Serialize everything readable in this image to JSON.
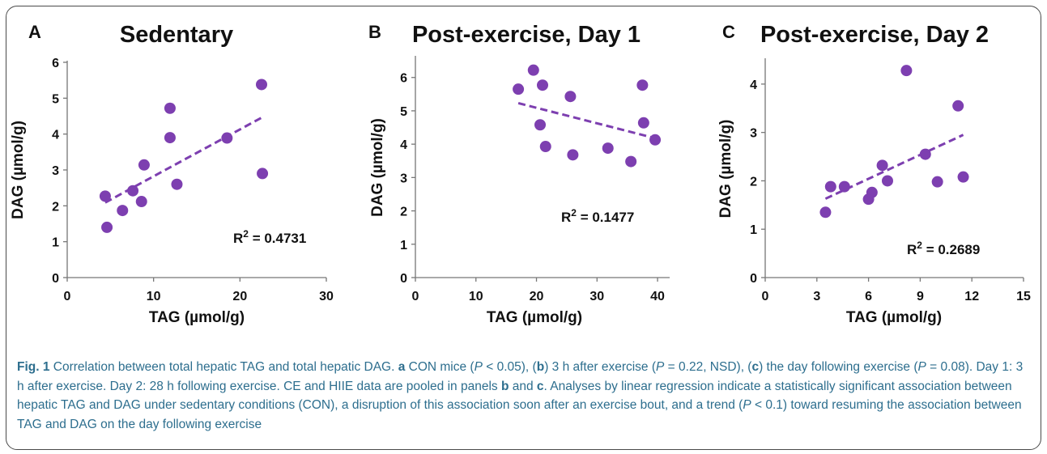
{
  "chart_data": [
    {
      "type": "scatter",
      "panel_letter": "A",
      "title": "Sedentary",
      "xlabel": "TAG (µmol/g)",
      "ylabel": "DAG (µmol/g)",
      "xlim": [
        0,
        30
      ],
      "ylim": [
        0,
        6
      ],
      "xticks": [
        "0",
        "10",
        "20",
        "30"
      ],
      "yticks": [
        "0",
        "1",
        "2",
        "3",
        "4",
        "5",
        "6"
      ],
      "points": [
        {
          "x": 4.4,
          "y": 2.27
        },
        {
          "x": 4.6,
          "y": 1.4
        },
        {
          "x": 6.4,
          "y": 1.87
        },
        {
          "x": 7.6,
          "y": 2.42
        },
        {
          "x": 8.6,
          "y": 2.12
        },
        {
          "x": 8.9,
          "y": 3.14
        },
        {
          "x": 11.9,
          "y": 4.72
        },
        {
          "x": 11.9,
          "y": 3.9
        },
        {
          "x": 12.7,
          "y": 2.6
        },
        {
          "x": 18.5,
          "y": 3.89
        },
        {
          "x": 22.5,
          "y": 5.38
        },
        {
          "x": 22.6,
          "y": 2.9
        }
      ],
      "trendline": {
        "x": [
          4.4,
          22.6
        ],
        "y": [
          2.09,
          4.47
        ],
        "style": "dashed"
      },
      "annotation": {
        "r2_label": "R",
        "r2_sup": "2",
        "r2_value": " = 0.4731"
      },
      "color": "#7d3fb0"
    },
    {
      "type": "scatter",
      "panel_letter": "B",
      "title": "Post-exercise, Day 1",
      "xlabel": "TAG (µmol/g)",
      "ylabel": "DAG (µmol/g)",
      "xlim": [
        0,
        42
      ],
      "ylim": [
        0,
        6.6
      ],
      "xticks": [
        "0",
        "10",
        "20",
        "30",
        "40"
      ],
      "yticks": [
        "0",
        "1",
        "2",
        "3",
        "4",
        "5",
        "6"
      ],
      "points": [
        {
          "x": 17.0,
          "y": 5.65
        },
        {
          "x": 19.5,
          "y": 6.22
        },
        {
          "x": 20.6,
          "y": 4.58
        },
        {
          "x": 21.0,
          "y": 5.77
        },
        {
          "x": 21.5,
          "y": 3.93
        },
        {
          "x": 25.6,
          "y": 5.43
        },
        {
          "x": 26.0,
          "y": 3.68
        },
        {
          "x": 31.8,
          "y": 3.88
        },
        {
          "x": 35.6,
          "y": 3.48
        },
        {
          "x": 37.5,
          "y": 5.77
        },
        {
          "x": 37.7,
          "y": 4.64
        },
        {
          "x": 39.6,
          "y": 4.13
        }
      ],
      "trendline": {
        "x": [
          17.0,
          39.6
        ],
        "y": [
          5.23,
          4.18
        ],
        "style": "dashed"
      },
      "annotation": {
        "r2_label": "R",
        "r2_sup": "2",
        "r2_value": " = 0.1477"
      },
      "color": "#7d3fb0"
    },
    {
      "type": "scatter",
      "panel_letter": "C",
      "title": "Post-exercise, Day 2",
      "xlabel": "TAG (µmol/g)",
      "ylabel": "DAG (µmol/g)",
      "xlim": [
        0,
        15
      ],
      "ylim": [
        0,
        4.5
      ],
      "xticks": [
        "0",
        "3",
        "6",
        "9",
        "12",
        "15"
      ],
      "yticks": [
        "0",
        "1",
        "2",
        "3",
        "4"
      ],
      "points": [
        {
          "x": 3.5,
          "y": 1.35
        },
        {
          "x": 3.8,
          "y": 1.88
        },
        {
          "x": 4.6,
          "y": 1.88
        },
        {
          "x": 6.0,
          "y": 1.62
        },
        {
          "x": 6.2,
          "y": 1.76
        },
        {
          "x": 6.8,
          "y": 2.32
        },
        {
          "x": 7.1,
          "y": 2.0
        },
        {
          "x": 8.2,
          "y": 4.28
        },
        {
          "x": 9.3,
          "y": 2.55
        },
        {
          "x": 10.0,
          "y": 1.98
        },
        {
          "x": 11.2,
          "y": 3.55
        },
        {
          "x": 11.5,
          "y": 2.08
        }
      ],
      "trendline": {
        "x": [
          3.5,
          11.5
        ],
        "y": [
          1.63,
          2.95
        ],
        "style": "dashed"
      },
      "annotation": {
        "r2_label": "R",
        "r2_sup": "2",
        "r2_value": " = 0.2689"
      },
      "color": "#7d3fb0"
    }
  ],
  "caption": {
    "fig_label": "Fig. 1",
    "lead": " Correlation between total hepatic TAG and total hepatic DAG. ",
    "a": "a",
    "t1": " CON mice (",
    "p1": "P",
    "t2": " < 0.05), (",
    "b": "b",
    "t3": ") 3 h after exercise (",
    "p2": "P",
    "t4": " = 0.22, NSD), (",
    "c": "c",
    "t5": ") the day following exercise (",
    "p3": "P",
    "t6": " = 0.08). Day 1: 3 h after exercise. Day 2: 28 h following exercise. CE and HIIE data are pooled in panels ",
    "b2": "b",
    "t7": " and ",
    "c2": "c",
    "t8": ". Analyses by linear regression indicate a statistically significant association between hepatic TAG and DAG under sedentary conditions (CON), a disruption of this association soon after an exercise bout, and a trend (",
    "p4": "P",
    "t9": " < 0.1) toward resuming the association between TAG and DAG on the day following exercise"
  }
}
